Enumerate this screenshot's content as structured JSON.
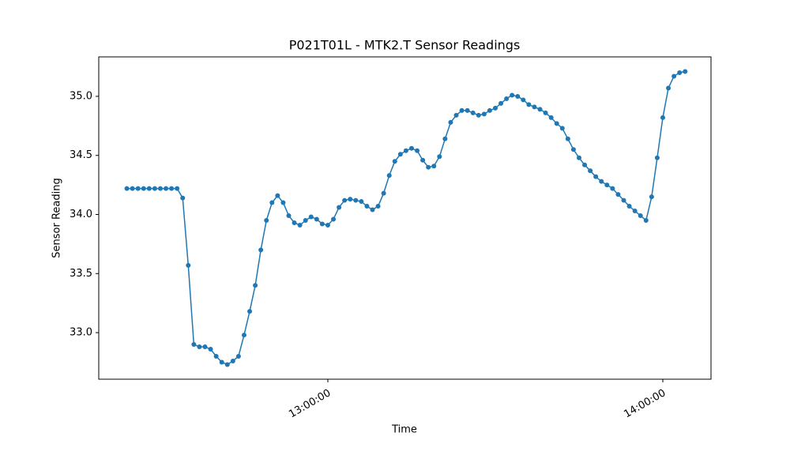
{
  "chart_data": {
    "type": "line",
    "title": "P021T01L - MTK2.T Sensor Readings",
    "x_label": "Time",
    "y_label": "Sensor Reading",
    "x": [
      "12:24:00",
      "12:25:00",
      "12:26:00",
      "12:27:00",
      "12:28:00",
      "12:29:00",
      "12:30:00",
      "12:31:00",
      "12:32:00",
      "12:33:00",
      "12:34:00",
      "12:35:00",
      "12:36:00",
      "12:37:00",
      "12:38:00",
      "12:39:00",
      "12:40:00",
      "12:41:00",
      "12:42:00",
      "12:43:00",
      "12:44:00",
      "12:45:00",
      "12:46:00",
      "12:47:00",
      "12:48:00",
      "12:49:00",
      "12:50:00",
      "12:51:00",
      "12:52:00",
      "12:53:00",
      "12:54:00",
      "12:55:00",
      "12:56:00",
      "12:57:00",
      "12:58:00",
      "12:59:00",
      "13:00:00",
      "13:01:00",
      "13:02:00",
      "13:03:00",
      "13:04:00",
      "13:05:00",
      "13:06:00",
      "13:07:00",
      "13:08:00",
      "13:09:00",
      "13:10:00",
      "13:11:00",
      "13:12:00",
      "13:13:00",
      "13:14:00",
      "13:15:00",
      "13:16:00",
      "13:17:00",
      "13:18:00",
      "13:19:00",
      "13:20:00",
      "13:21:00",
      "13:22:00",
      "13:23:00",
      "13:24:00",
      "13:25:00",
      "13:26:00",
      "13:27:00",
      "13:28:00",
      "13:29:00",
      "13:30:00",
      "13:31:00",
      "13:32:00",
      "13:33:00",
      "13:34:00",
      "13:35:00",
      "13:36:00",
      "13:37:00",
      "13:38:00",
      "13:39:00",
      "13:40:00",
      "13:41:00",
      "13:42:00",
      "13:43:00",
      "13:44:00",
      "13:45:00",
      "13:46:00",
      "13:47:00",
      "13:48:00",
      "13:49:00",
      "13:50:00",
      "13:51:00",
      "13:52:00",
      "13:53:00",
      "13:54:00",
      "13:55:00",
      "13:56:00",
      "13:57:00",
      "13:58:00",
      "13:59:00",
      "14:00:00",
      "14:01:00",
      "14:02:00",
      "14:03:00",
      "14:04:00"
    ],
    "series": [
      {
        "color": "#1f77b4",
        "values": [
          34.22,
          34.22,
          34.22,
          34.22,
          34.22,
          34.22,
          34.22,
          34.22,
          34.22,
          34.22,
          34.14,
          33.57,
          32.9,
          32.88,
          32.88,
          32.86,
          32.8,
          32.75,
          32.73,
          32.76,
          32.8,
          32.98,
          33.18,
          33.4,
          33.7,
          33.95,
          34.1,
          34.16,
          34.1,
          33.99,
          33.93,
          33.91,
          33.95,
          33.98,
          33.96,
          33.92,
          33.91,
          33.96,
          34.06,
          34.12,
          34.13,
          34.12,
          34.11,
          34.07,
          34.04,
          34.07,
          34.18,
          34.33,
          34.45,
          34.51,
          34.54,
          34.56,
          34.54,
          34.46,
          34.4,
          34.41,
          34.49,
          34.64,
          34.78,
          34.84,
          34.88,
          34.88,
          34.86,
          34.84,
          34.85,
          34.88,
          34.9,
          34.94,
          34.98,
          35.01,
          35.0,
          34.97,
          34.93,
          34.91,
          34.89,
          34.86,
          34.82,
          34.77,
          34.73,
          34.64,
          34.55,
          34.48,
          34.42,
          34.37,
          34.32,
          34.28,
          34.25,
          34.22,
          34.17,
          34.12,
          34.07,
          34.03,
          33.99,
          33.95,
          34.15,
          34.48,
          34.82,
          35.07,
          35.17,
          35.2,
          35.21
        ]
      }
    ],
    "xlim": [
      "12:18:58",
      "14:08:38"
    ],
    "xticks": [
      "13:00:00",
      "14:00:00"
    ],
    "ylim": [
      32.606,
      35.334
    ],
    "yticks": [
      {
        "value": 33,
        "label": "33.0"
      },
      {
        "value": 33.5,
        "label": "33.5"
      },
      {
        "value": 34,
        "label": "34.0"
      },
      {
        "value": 34.5,
        "label": "34.5"
      },
      {
        "value": 35,
        "label": "35.0"
      }
    ],
    "grid": false
  }
}
